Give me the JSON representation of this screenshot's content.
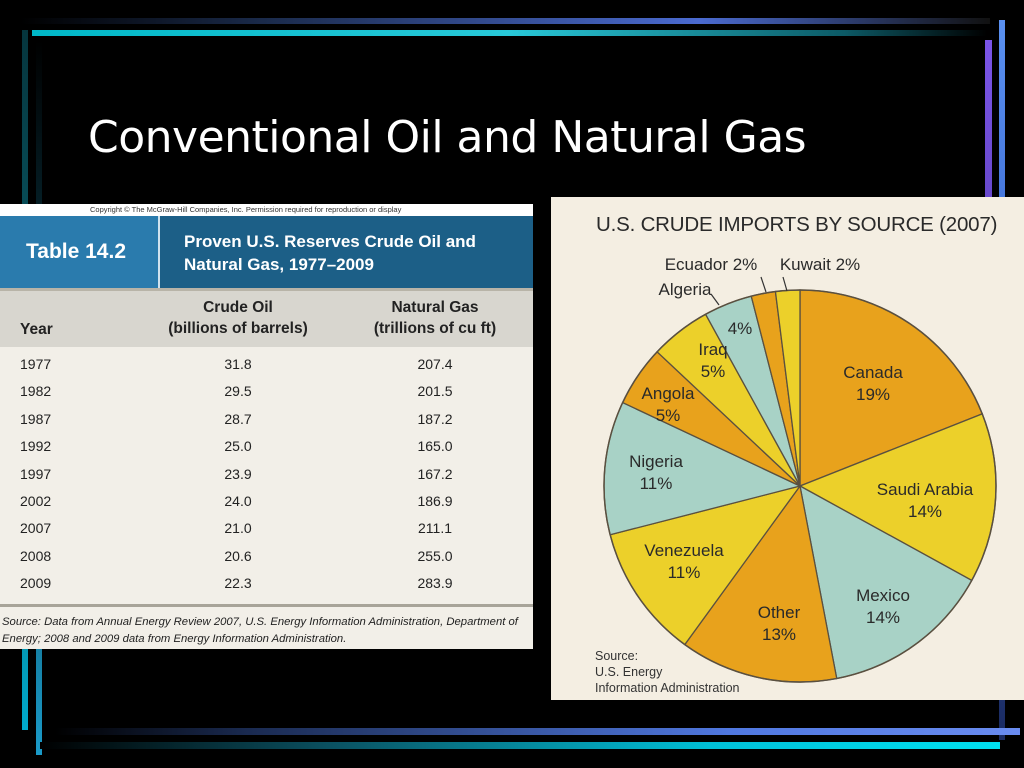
{
  "slide": {
    "title": "Conventional Oil and Natural Gas"
  },
  "table": {
    "copyright": "Copyright © The McGraw-Hill Companies, Inc. Permission required for reproduction or display",
    "number": "Table 14.2",
    "title_line1": "Proven U.S. Reserves Crude Oil and",
    "title_line2": "Natural Gas, 1977–2009",
    "col_year": "Year",
    "col_crude_line1": "Crude Oil",
    "col_crude_line2": "(billions of barrels)",
    "col_gas_line1": "Natural Gas",
    "col_gas_line2": "(trillions of cu ft)",
    "rows": [
      {
        "year": "1977",
        "crude": "31.8",
        "gas": "207.4"
      },
      {
        "year": "1982",
        "crude": "29.5",
        "gas": "201.5"
      },
      {
        "year": "1987",
        "crude": "28.7",
        "gas": "187.2"
      },
      {
        "year": "1992",
        "crude": "25.0",
        "gas": "165.0"
      },
      {
        "year": "1997",
        "crude": "23.9",
        "gas": "167.2"
      },
      {
        "year": "2002",
        "crude": "24.0",
        "gas": "186.9"
      },
      {
        "year": "2007",
        "crude": "21.0",
        "gas": "211.1"
      },
      {
        "year": "2008",
        "crude": "20.6",
        "gas": "255.0"
      },
      {
        "year": "2009",
        "crude": "22.3",
        "gas": "283.9"
      }
    ],
    "source_prefix": "Source: ",
    "source_text": "Data from Annual Energy Review 2007, U.S. Energy Information Administration, Department of Energy; 2008 and 2009 data from Energy Information Administration."
  },
  "chart_data": {
    "type": "pie",
    "title": "U.S. CRUDE IMPORTS BY SOURCE (2007)",
    "source_line1": "Source:",
    "source_line2": "U.S. Energy",
    "source_line3": "Information Administration",
    "slices": [
      {
        "name": "Canada",
        "value": 19,
        "label": "19%",
        "color": "#e8a21c"
      },
      {
        "name": "Saudi Arabia",
        "value": 14,
        "label": "14%",
        "color": "#ecd02a"
      },
      {
        "name": "Mexico",
        "value": 14,
        "label": "14%",
        "color": "#a8d2c6"
      },
      {
        "name": "Other",
        "value": 13,
        "label": "13%",
        "color": "#e8a21c"
      },
      {
        "name": "Venezuela",
        "value": 11,
        "label": "11%",
        "color": "#ecd02a"
      },
      {
        "name": "Nigeria",
        "value": 11,
        "label": "11%",
        "color": "#a8d2c6"
      },
      {
        "name": "Angola",
        "value": 5,
        "label": "5%",
        "color": "#e8a21c"
      },
      {
        "name": "Iraq",
        "value": 5,
        "label": "5%",
        "color": "#ecd02a"
      },
      {
        "name": "Algeria",
        "value": 4,
        "label": "4%",
        "color": "#a8d2c6"
      },
      {
        "name": "Ecuador",
        "value": 2,
        "label": "2%",
        "color": "#e8a21c"
      },
      {
        "name": "Kuwait",
        "value": 2,
        "label": "2%",
        "color": "#ecd02a"
      }
    ]
  }
}
